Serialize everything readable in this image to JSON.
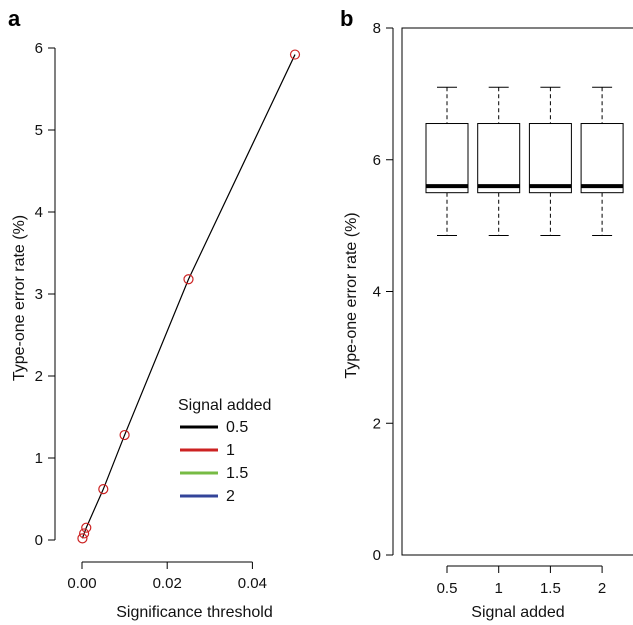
{
  "chart_data": [
    {
      "panel": "a",
      "type": "line",
      "xlabel": "Significance threshold",
      "ylabel": "Type-one error rate (%)",
      "xlim": [
        0,
        0.05
      ],
      "ylim": [
        0,
        6
      ],
      "x_ticks": [
        0.0,
        0.02,
        0.04
      ],
      "x_tick_labels": [
        "0.00",
        "0.02",
        "0.04"
      ],
      "y_ticks": [
        0,
        1,
        2,
        3,
        4,
        5,
        6
      ],
      "y_tick_labels": [
        "0",
        "1",
        "2",
        "3",
        "4",
        "5",
        "6"
      ],
      "x": [
        0.0001,
        0.0005,
        0.001,
        0.005,
        0.01,
        0.025,
        0.05
      ],
      "series": [
        {
          "name": "0.5",
          "color": "#000000",
          "values": [
            0.02,
            0.08,
            0.15,
            0.62,
            1.28,
            3.18,
            5.92
          ]
        },
        {
          "name": "1",
          "color": "#cc2222",
          "values": [
            0.02,
            0.08,
            0.15,
            0.62,
            1.28,
            3.18,
            5.92
          ]
        },
        {
          "name": "1.5",
          "color": "#77bb44",
          "values": [
            0.02,
            0.08,
            0.15,
            0.62,
            1.28,
            3.18,
            5.92
          ]
        },
        {
          "name": "2",
          "color": "#334499",
          "values": [
            0.02,
            0.08,
            0.15,
            0.62,
            1.28,
            3.18,
            5.92
          ]
        }
      ],
      "legend": {
        "title": "Signal added",
        "placement": "bottom-right"
      }
    },
    {
      "panel": "b",
      "type": "box",
      "xlabel": "Signal added",
      "ylabel": "Type-one error rate (%)",
      "ylim": [
        0,
        8
      ],
      "y_ticks": [
        0,
        2,
        4,
        6,
        8
      ],
      "y_tick_labels": [
        "0",
        "2",
        "4",
        "6",
        "8"
      ],
      "categories": [
        "0.5",
        "1",
        "1.5",
        "2"
      ],
      "boxes": [
        {
          "min": 4.85,
          "q1": 5.5,
          "median": 5.6,
          "q3": 6.55,
          "max": 7.1
        },
        {
          "min": 4.85,
          "q1": 5.5,
          "median": 5.6,
          "q3": 6.55,
          "max": 7.1
        },
        {
          "min": 4.85,
          "q1": 5.5,
          "median": 5.6,
          "q3": 6.55,
          "max": 7.1
        },
        {
          "min": 4.85,
          "q1": 5.5,
          "median": 5.6,
          "q3": 6.55,
          "max": 7.1
        }
      ]
    }
  ]
}
